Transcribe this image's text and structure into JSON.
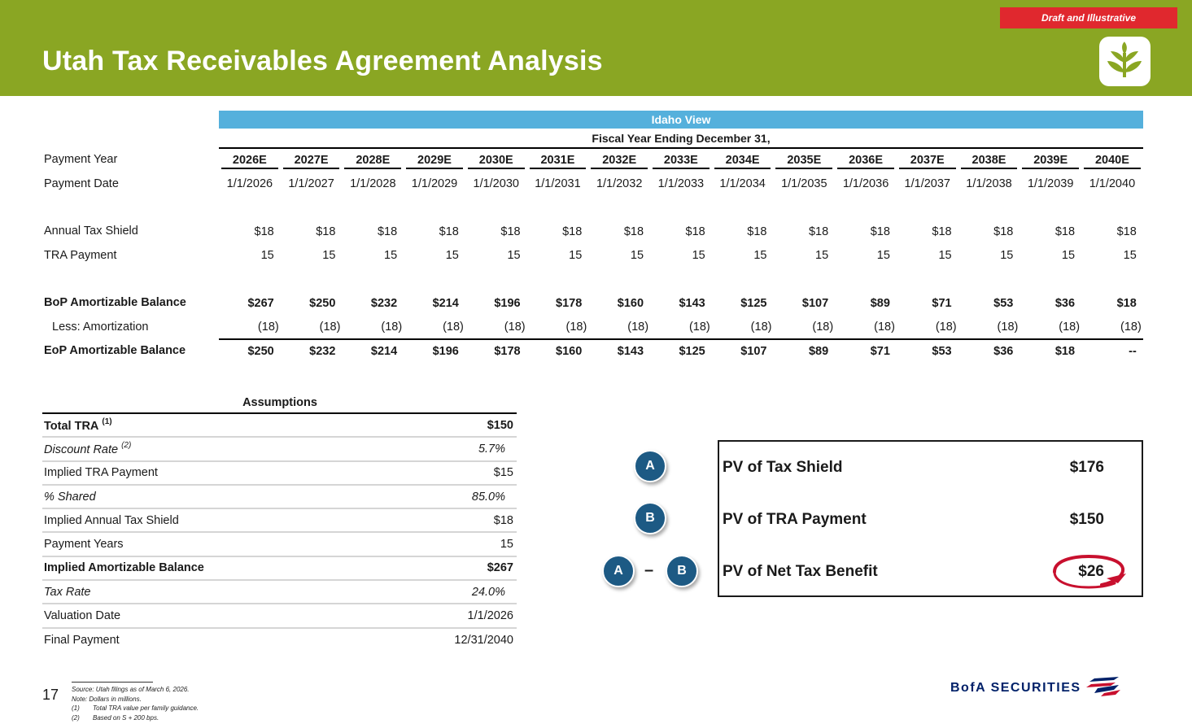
{
  "header": {
    "title": "Utah Tax Receivables Agreement Analysis",
    "draft_label": "Draft and Illustrative"
  },
  "schedule": {
    "view_label": "Idaho View",
    "fiscal_label": "Fiscal Year Ending December 31,",
    "years": [
      "2026E",
      "2027E",
      "2028E",
      "2029E",
      "2030E",
      "2031E",
      "2032E",
      "2033E",
      "2034E",
      "2035E",
      "2036E",
      "2037E",
      "2038E",
      "2039E",
      "2040E"
    ],
    "dates": [
      "1/1/2026",
      "1/1/2027",
      "1/1/2028",
      "1/1/2029",
      "1/1/2030",
      "1/1/2031",
      "1/1/2032",
      "1/1/2033",
      "1/1/2034",
      "1/1/2035",
      "1/1/2036",
      "1/1/2037",
      "1/1/2038",
      "1/1/2039",
      "1/1/2040"
    ],
    "rows": {
      "payment_year": {
        "label": "Payment Year"
      },
      "payment_date": {
        "label": "Payment Date"
      },
      "tax_shield": {
        "label": "Annual Tax Shield",
        "values": [
          "$18",
          "$18",
          "$18",
          "$18",
          "$18",
          "$18",
          "$18",
          "$18",
          "$18",
          "$18",
          "$18",
          "$18",
          "$18",
          "$18",
          "$18"
        ]
      },
      "tra_payment": {
        "label": "TRA Payment",
        "values": [
          "15",
          "15",
          "15",
          "15",
          "15",
          "15",
          "15",
          "15",
          "15",
          "15",
          "15",
          "15",
          "15",
          "15",
          "15"
        ]
      },
      "bop_balance": {
        "label": "BoP Amortizable Balance",
        "values": [
          "$267",
          "$250",
          "$232",
          "$214",
          "$196",
          "$178",
          "$160",
          "$143",
          "$125",
          "$107",
          "$89",
          "$71",
          "$53",
          "$36",
          "$18"
        ]
      },
      "amortization": {
        "label": "Less: Amortization",
        "values": [
          "(18)",
          "(18)",
          "(18)",
          "(18)",
          "(18)",
          "(18)",
          "(18)",
          "(18)",
          "(18)",
          "(18)",
          "(18)",
          "(18)",
          "(18)",
          "(18)",
          "(18)"
        ]
      },
      "eop_balance": {
        "label": "EoP Amortizable Balance",
        "values": [
          "$250",
          "$232",
          "$214",
          "$196",
          "$178",
          "$160",
          "$143",
          "$125",
          "$107",
          "$89",
          "$71",
          "$53",
          "$36",
          "$18",
          "--"
        ]
      }
    }
  },
  "assumptions": {
    "title": "Assumptions",
    "rows": [
      {
        "label": "Total TRA",
        "note": "(1)",
        "value": "$150",
        "style": "bold"
      },
      {
        "label": "Discount Rate",
        "note": "(2)",
        "value": "5.7%",
        "style": "italic"
      },
      {
        "label": "Implied TRA Payment",
        "note": "",
        "value": "$15",
        "style": "normal"
      },
      {
        "label": "% Shared",
        "note": "",
        "value": "85.0%",
        "style": "italic"
      },
      {
        "label": "Implied Annual Tax Shield",
        "note": "",
        "value": "$18",
        "style": "normal"
      },
      {
        "label": "Payment Years",
        "note": "",
        "value": "15",
        "style": "normal"
      },
      {
        "label": "Implied Amortizable Balance",
        "note": "",
        "value": "$267",
        "style": "bold"
      },
      {
        "label": "Tax Rate",
        "note": "",
        "value": "24.0%",
        "style": "italic"
      },
      {
        "label": "Valuation Date",
        "note": "",
        "value": "1/1/2026",
        "style": "normal"
      },
      {
        "label": "Final Payment",
        "note": "",
        "value": "12/31/2040",
        "style": "normal"
      }
    ]
  },
  "pv_summary": {
    "bubble_a": "A",
    "bubble_b": "B",
    "minus": "–",
    "tax_shield": {
      "label": "PV of Tax Shield",
      "value": "$176"
    },
    "tra_payment": {
      "label": "PV of TRA Payment",
      "value": "$150"
    },
    "net_benefit": {
      "label": "PV of Net Tax Benefit",
      "value": "$26"
    }
  },
  "footer": {
    "page_number": "17",
    "source": "Source: Utah filings as of March 6, 2026.",
    "note": "Note: Dollars in millions.",
    "footnotes": [
      {
        "num": "(1)",
        "text": "Total TRA value per family guidance."
      },
      {
        "num": "(2)",
        "text": "Based on S + 200 bps."
      }
    ],
    "brand": "BofA SECURITIES"
  },
  "colors": {
    "header_green": "#8aa623",
    "draft_red": "#e0282e",
    "view_blue": "#55b0dc",
    "bubble_blue": "#1d5a84",
    "highlight_red": "#c8102e",
    "brand_navy": "#012169"
  }
}
